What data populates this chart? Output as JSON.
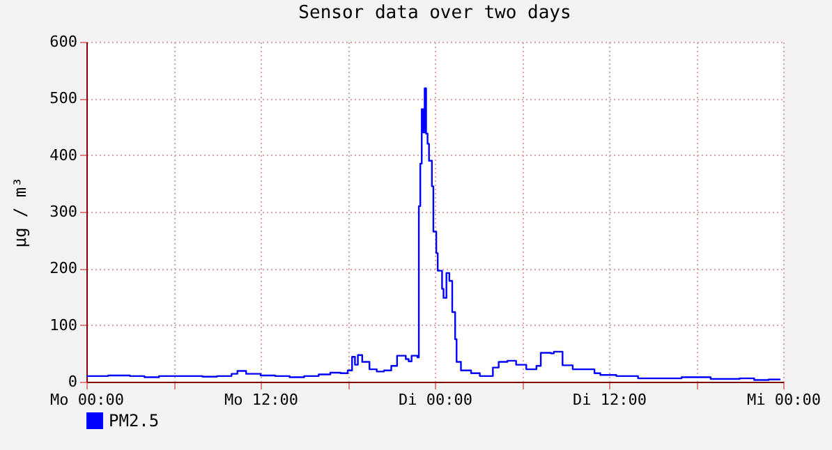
{
  "chart_data": {
    "type": "step",
    "title": "Sensor data over two days",
    "ylabel": "µg / m³",
    "xlim": [
      "--01-01T00:00",
      "--01-03T00:00"
    ],
    "xticks": [
      {
        "value": "--01-01T00:00",
        "label": "Mo 00:00"
      },
      {
        "value": "--01-01T06:00",
        "label": null
      },
      {
        "value": "--01-01T12:00",
        "label": "Mo 12:00"
      },
      {
        "value": "--01-01T18:00",
        "label": null
      },
      {
        "value": "--01-02T00:00",
        "label": "Di 00:00"
      },
      {
        "value": "--01-02T06:00",
        "label": null
      },
      {
        "value": "--01-02T12:00",
        "label": "Di 12:00"
      },
      {
        "value": "--01-02T18:00",
        "label": null
      },
      {
        "value": "--01-03T00:00",
        "label": "Mi 00:00"
      }
    ],
    "ylim": [
      0,
      600
    ],
    "yticks": [
      0,
      100,
      200,
      300,
      400,
      500,
      600
    ],
    "grid": true,
    "legend": "bottom left",
    "x": [
      "--01-01T00:00",
      "--01-01T01:30",
      "--01-01T03:00",
      "--01-01T04:00",
      "--01-01T05:00",
      "--01-01T06:00",
      "--01-01T08:00",
      "--01-01T09:00",
      "--01-01T10:00",
      "--01-01T10:24",
      "--01-01T11:00",
      "--01-01T12:00",
      "--01-01T13:00",
      "--01-01T14:00",
      "--01-01T15:00",
      "--01-01T16:00",
      "--01-01T16:48",
      "--01-01T17:30",
      "--01-01T18:00",
      "--01-01T18:18",
      "--01-01T18:30",
      "--01-01T18:42",
      "--01-01T19:00",
      "--01-01T19:30",
      "--01-01T20:00",
      "--01-01T20:30",
      "--01-01T21:00",
      "--01-01T21:24",
      "--01-01T22:00",
      "--01-01T22:12",
      "--01-01T22:24",
      "--01-01T22:48",
      "--01-01T22:54",
      "--01-01T23:00",
      "--01-01T23:06",
      "--01-01T23:12",
      "--01-01T23:18",
      "--01-01T23:24",
      "--01-01T23:30",
      "--01-01T23:36",
      "--01-01T23:48",
      "--01-01T23:54",
      "--01-02T00:06",
      "--01-02T00:12",
      "--01-02T00:30",
      "--01-02T00:36",
      "--01-02T00:48",
      "--01-02T01:00",
      "--01-02T01:12",
      "--01-02T01:24",
      "--01-02T01:30",
      "--01-02T01:48",
      "--01-02T02:30",
      "--01-02T03:06",
      "--01-02T04:00",
      "--01-02T04:24",
      "--01-02T05:00",
      "--01-02T05:36",
      "--01-02T06:18",
      "--01-02T07:00",
      "--01-02T07:18",
      "--01-02T08:00",
      "--01-02T08:12",
      "--01-02T08:48",
      "--01-02T09:30",
      "--01-02T10:42",
      "--01-02T11:00",
      "--01-02T11:24",
      "--01-02T12:30",
      "--01-02T13:18",
      "--01-02T14:00",
      "--01-02T15:00",
      "--01-02T16:00",
      "--01-02T17:00",
      "--01-02T18:00",
      "--01-02T19:00",
      "--01-02T20:00",
      "--01-02T21:00",
      "--01-02T22:00",
      "--01-02T23:00",
      "--01-02T23:48"
    ],
    "series": [
      {
        "name": "PM2.5",
        "color": "#0000ff",
        "values": [
          10,
          11,
          10,
          8,
          10,
          10,
          9,
          10,
          14,
          19,
          14,
          11,
          10,
          8,
          10,
          13,
          16,
          15,
          20,
          44,
          30,
          47,
          35,
          22,
          18,
          20,
          28,
          46,
          40,
          36,
          46,
          43,
          310,
          385,
          481,
          440,
          518,
          438,
          420,
          390,
          345,
          265,
          227,
          196,
          164,
          148,
          192,
          178,
          123,
          75,
          35,
          20,
          15,
          10,
          25,
          35,
          37,
          30,
          22,
          28,
          51,
          50,
          53,
          29,
          22,
          22,
          15,
          12,
          10,
          10,
          6,
          6,
          6,
          8,
          8,
          5,
          5,
          6,
          3,
          4,
          4
        ]
      }
    ]
  }
}
